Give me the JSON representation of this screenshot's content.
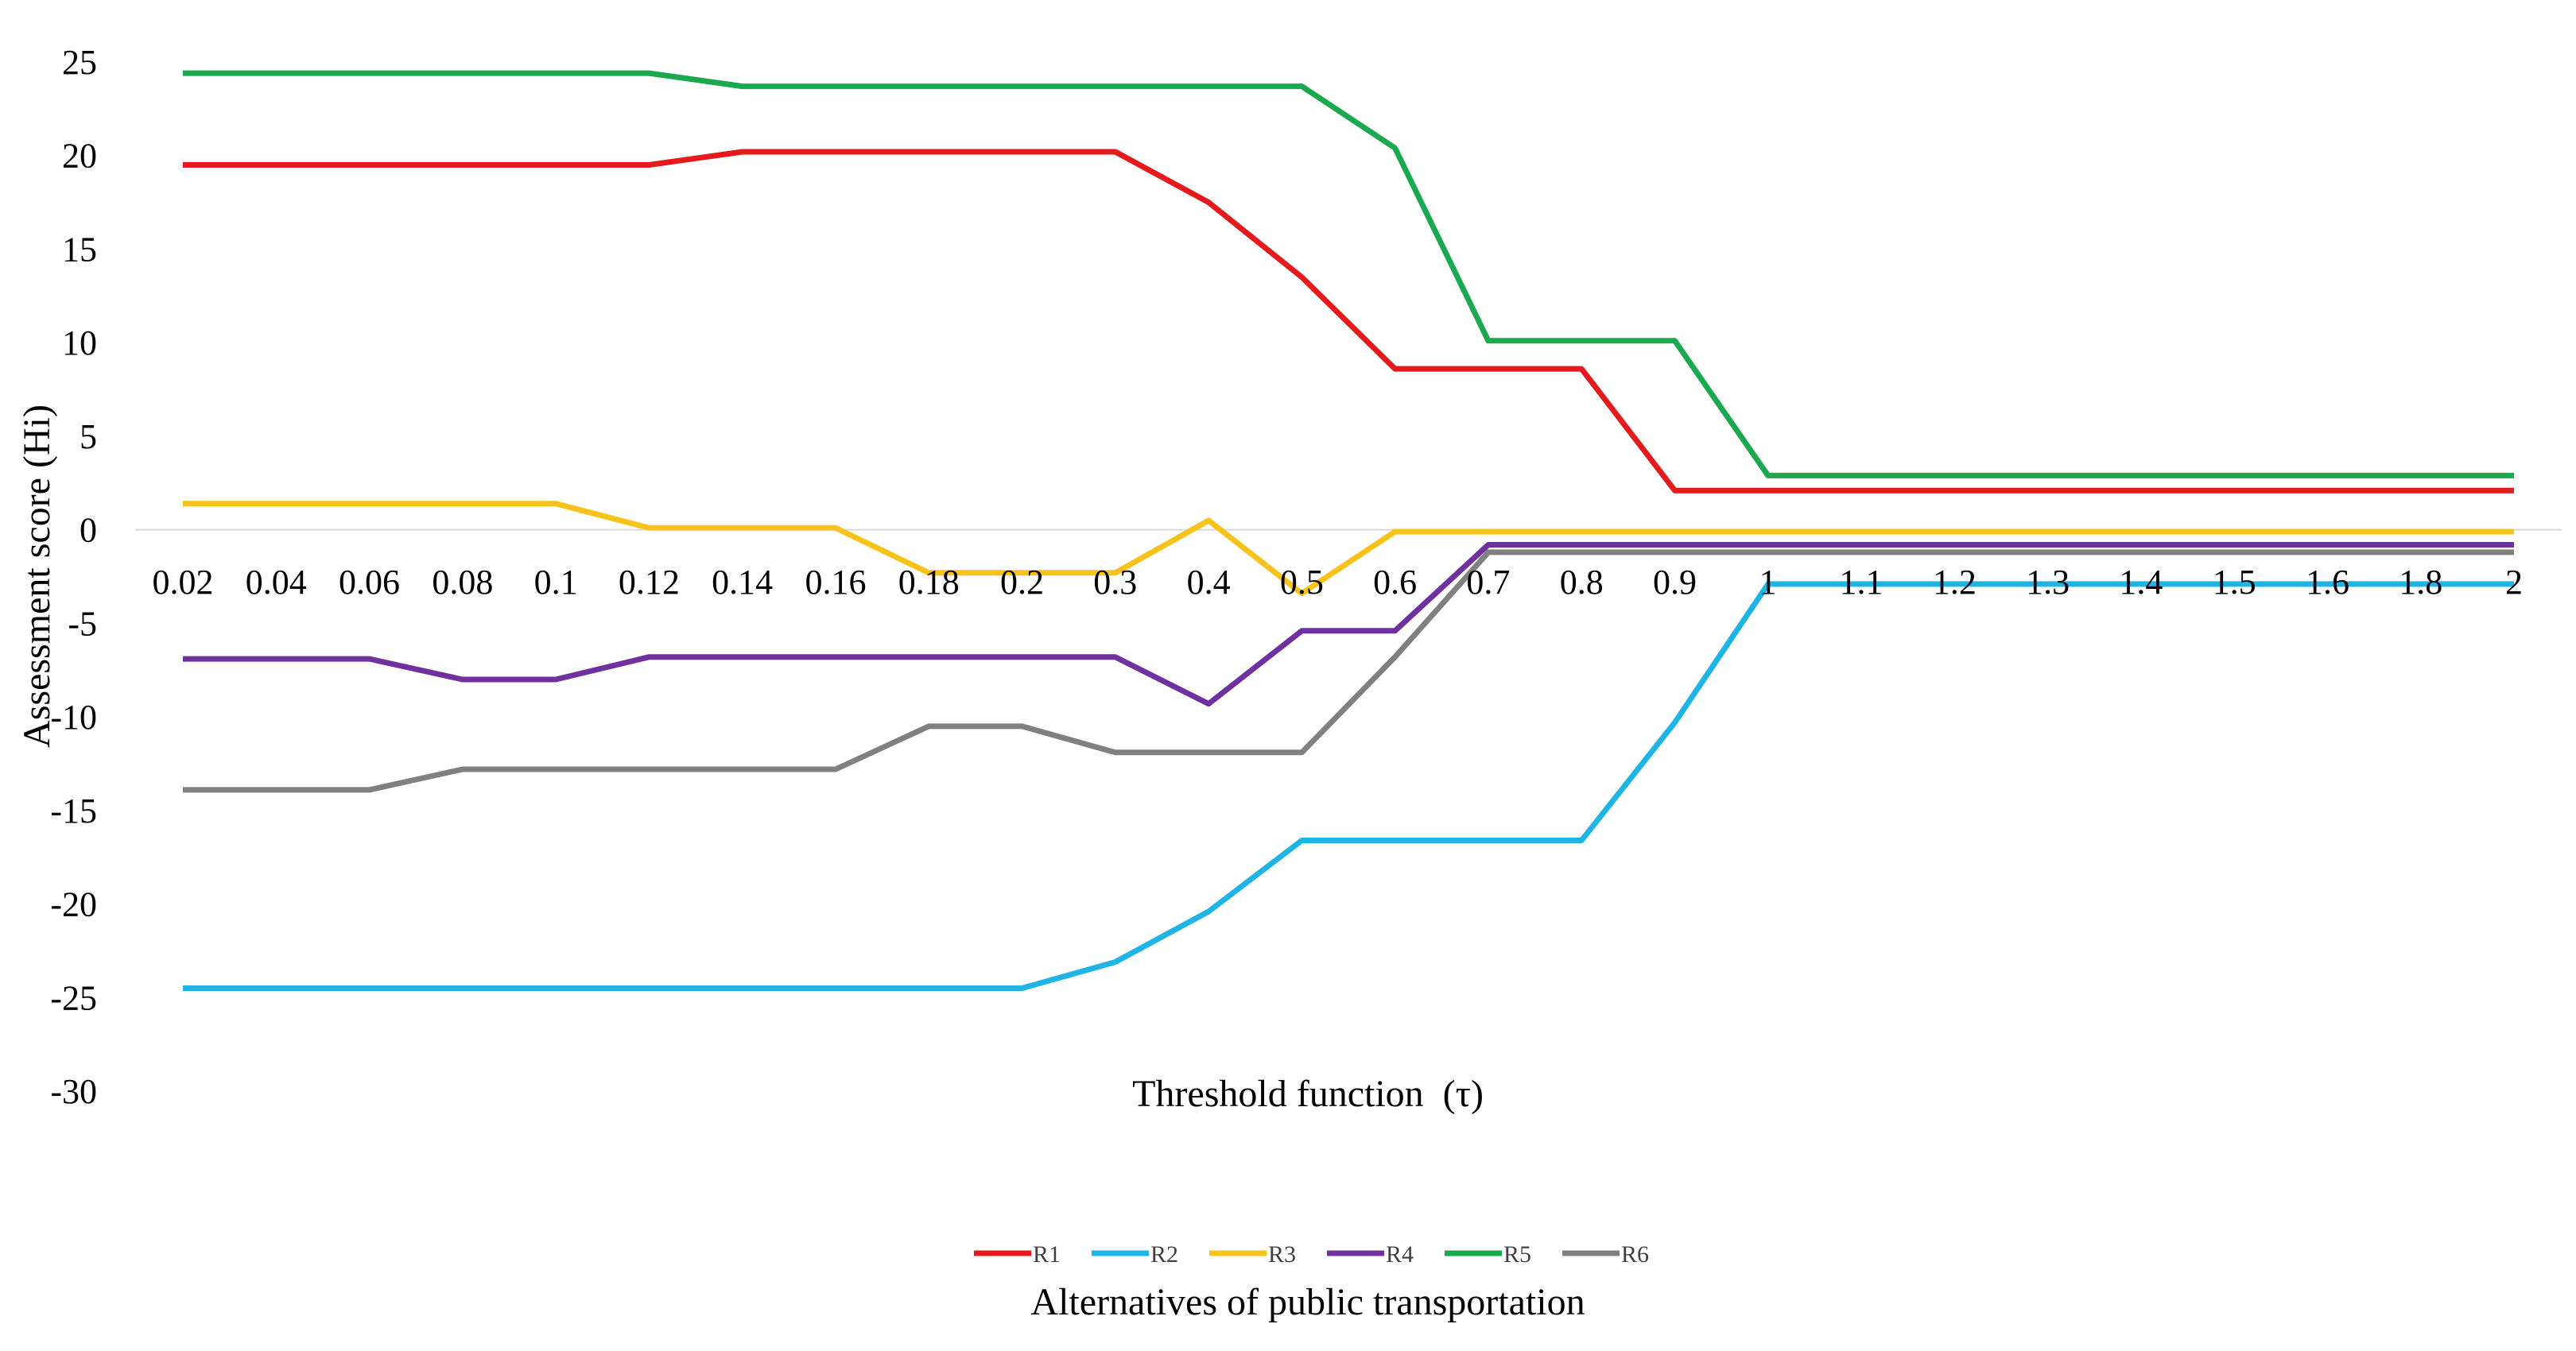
{
  "chart_data": {
    "type": "line",
    "categories": [
      "0.02",
      "0.04",
      "0.06",
      "0.08",
      "0.1",
      "0.12",
      "0.14",
      "0.16",
      "0.18",
      "0.2",
      "0.3",
      "0.4",
      "0.5",
      "0.6",
      "0.7",
      "0.8",
      "0.9",
      "1",
      "1.1",
      "1.2",
      "1.3",
      "1.4",
      "1.5",
      "1.6",
      "1.8",
      "2"
    ],
    "series": [
      {
        "name": "R1",
        "color": "#e41a1c",
        "values": [
          19.5,
          19.5,
          19.5,
          19.5,
          19.5,
          19.5,
          20.2,
          20.2,
          20.2,
          20.2,
          20.2,
          17.5,
          13.5,
          8.6,
          8.6,
          8.6,
          2.1,
          2.1,
          2.1,
          2.1,
          2.1,
          2.1,
          2.1,
          2.1,
          2.1,
          2.1
        ]
      },
      {
        "name": "R2",
        "color": "#1fb4e6",
        "values": [
          -24.5,
          -24.5,
          -24.5,
          -24.5,
          -24.5,
          -24.5,
          -24.5,
          -24.5,
          -24.5,
          -24.5,
          -23.1,
          -20.4,
          -16.6,
          -16.6,
          -16.6,
          -16.6,
          -10.3,
          -2.9,
          -2.9,
          -2.9,
          -2.9,
          -2.9,
          -2.9,
          -2.9,
          -2.9,
          -2.9
        ]
      },
      {
        "name": "R3",
        "color": "#f7c31b",
        "values": [
          1.4,
          1.4,
          1.4,
          1.4,
          1.4,
          0.1,
          0.1,
          0.1,
          -2.3,
          -2.3,
          -2.3,
          0.5,
          -3.4,
          -0.1,
          -0.1,
          -0.1,
          -0.1,
          -0.1,
          -0.1,
          -0.1,
          -0.1,
          -0.1,
          -0.1,
          -0.1,
          -0.1,
          -0.1
        ]
      },
      {
        "name": "R4",
        "color": "#7030a0",
        "values": [
          -6.9,
          -6.9,
          -6.9,
          -8.0,
          -8.0,
          -6.8,
          -6.8,
          -6.8,
          -6.8,
          -6.8,
          -6.8,
          -9.3,
          -5.4,
          -5.4,
          -0.8,
          -0.8,
          -0.8,
          -0.8,
          -0.8,
          -0.8,
          -0.8,
          -0.8,
          -0.8,
          -0.8,
          -0.8,
          -0.8
        ]
      },
      {
        "name": "R5",
        "color": "#1aa94f",
        "values": [
          24.4,
          24.4,
          24.4,
          24.4,
          24.4,
          24.4,
          23.7,
          23.7,
          23.7,
          23.7,
          23.7,
          23.7,
          23.7,
          20.4,
          10.1,
          10.1,
          10.1,
          2.9,
          2.9,
          2.9,
          2.9,
          2.9,
          2.9,
          2.9,
          2.9,
          2.9
        ]
      },
      {
        "name": "R6",
        "color": "#808080",
        "values": [
          -13.9,
          -13.9,
          -13.9,
          -12.8,
          -12.8,
          -12.8,
          -12.8,
          -12.8,
          -10.5,
          -10.5,
          -11.9,
          -11.9,
          -11.9,
          -6.8,
          -1.2,
          -1.2,
          -1.2,
          -1.2,
          -1.2,
          -1.2,
          -1.2,
          -1.2,
          -1.2,
          -1.2,
          -1.2,
          -1.2
        ]
      }
    ],
    "yticks": [
      "25",
      "20",
      "15",
      "10",
      "5",
      "0",
      "-5",
      "-10",
      "-15",
      "-20",
      "-25",
      "-30"
    ],
    "ylim": [
      -30,
      25
    ],
    "ylabel": "Assessment score (Hi)",
    "xlabel": "Threshold function  (τ)",
    "legend_title": "Alternatives of public transportation",
    "legend_position": "bottom-center",
    "grid": false
  }
}
